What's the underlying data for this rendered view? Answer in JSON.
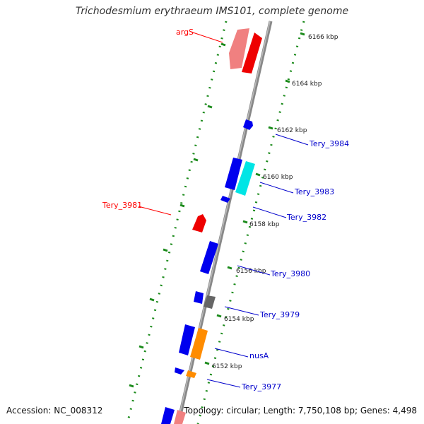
{
  "title": "Trichodesmium erythraeum IMS101, complete genome",
  "footer": {
    "accession_label": "Accession:",
    "accession": "NC_008312",
    "topology_label": "Topology:",
    "topology": "circular",
    "length_label": "Length:",
    "length": "7,750,108 bp",
    "genes_label": "Genes:",
    "genes": "4,498"
  },
  "scale_ticks": [
    "6166 kbp",
    "6164 kbp",
    "6162 kbp",
    "6160 kbp",
    "6158 kbp",
    "6156 kbp",
    "6154 kbp",
    "6152 kbp"
  ],
  "gene_labels": [
    {
      "name": "argS",
      "color": "#ff0000"
    },
    {
      "name": "Tery_3984",
      "color": "#0000cc"
    },
    {
      "name": "Tery_3983",
      "color": "#0000cc"
    },
    {
      "name": "Tery_3982",
      "color": "#0000cc"
    },
    {
      "name": "Tery_3981",
      "color": "#ff0000"
    },
    {
      "name": "Tery_3980",
      "color": "#0000cc"
    },
    {
      "name": "Tery_3979",
      "color": "#0000cc"
    },
    {
      "name": "nusA",
      "color": "#0000cc"
    },
    {
      "name": "Tery_3977",
      "color": "#0000cc"
    }
  ],
  "colors": {
    "backbone": "#888888",
    "ticks": "#1a8a1a",
    "forward": "#0000ee",
    "reverse": "#ee0000",
    "reverse_light": "#f08080",
    "rna": "#00e5e5",
    "orange": "#ff8c00",
    "gray": "#666666"
  }
}
